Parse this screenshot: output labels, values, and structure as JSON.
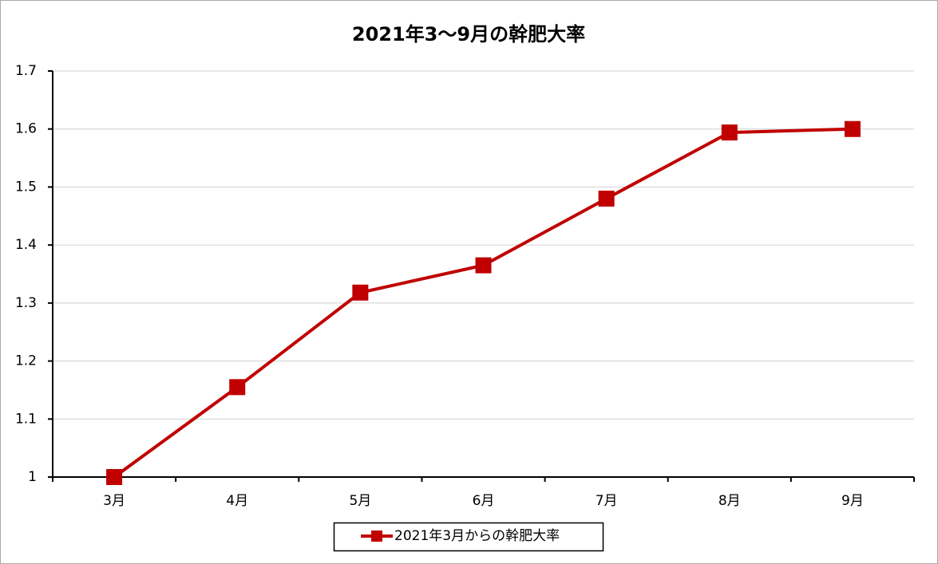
{
  "chart_data": {
    "type": "line",
    "title": "2021年3〜9月の幹肥大率",
    "categories": [
      "3月",
      "4月",
      "5月",
      "6月",
      "7月",
      "8月",
      "9月"
    ],
    "series": [
      {
        "name": "2021年3月からの幹肥大率",
        "color": "#c00000",
        "values": [
          1.0,
          1.155,
          1.318,
          1.365,
          1.48,
          1.594,
          1.6
        ]
      }
    ],
    "ylim": [
      1,
      1.7
    ],
    "yticks": [
      1,
      1.1,
      1.2,
      1.3,
      1.4,
      1.5,
      1.6,
      1.7
    ],
    "grid": true,
    "legend": "bottom"
  }
}
